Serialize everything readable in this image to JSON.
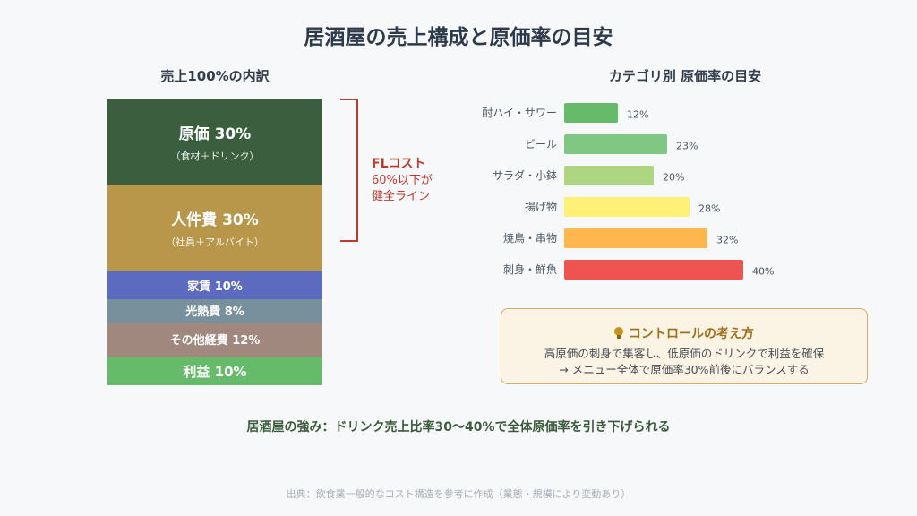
{
  "title": "居酒屋の売上構成と原価率の目安",
  "left_heading": "売上100%の内訳",
  "right_heading": "カテゴリ別 原価率の目安",
  "segments": [
    {
      "label": "原価 30%",
      "sub": "（食材＋ドリンク）",
      "value": 30,
      "color": "#3b5e3f"
    },
    {
      "label": "人件費 30%",
      "sub": "（社員＋アルバイト）",
      "value": 30,
      "color": "#b8974b"
    },
    {
      "label": "家賃 10%",
      "sub": "",
      "value": 10,
      "color": "#5c6bc0"
    },
    {
      "label": "光熱費 8%",
      "sub": "",
      "value": 8,
      "color": "#78909c"
    },
    {
      "label": "その他経費 12%",
      "sub": "",
      "value": 12,
      "color": "#a1887f"
    },
    {
      "label": "利益 10%",
      "sub": "",
      "value": 10,
      "color": "#66bb6a"
    }
  ],
  "fl": {
    "title": "FLコスト",
    "note_line1": "60%以下が",
    "note_line2": "健全ライン",
    "color": "#c0392b"
  },
  "chart_data": {
    "type": "bar",
    "orientation": "horizontal",
    "categories": [
      "酎ハイ・サワー",
      "ビール",
      "サラダ・小鉢",
      "揚げ物",
      "焼鳥・串物",
      "刺身・鮮魚"
    ],
    "values": [
      12,
      23,
      20,
      28,
      32,
      40
    ],
    "value_labels": [
      "12%",
      "23%",
      "20%",
      "28%",
      "32%",
      "40%"
    ],
    "colors": [
      "#66bb6a",
      "#81c784",
      "#aed581",
      "#fff176",
      "#ffb74d",
      "#ef5350"
    ],
    "xlim": [
      0,
      40
    ],
    "grid": false
  },
  "callout": {
    "title": "コントロールの考え方",
    "line1": "高原価の刺身で集客し、低原価のドリンクで利益を確保",
    "line2": "→ メニュー全体で原価率30%前後にバランスする",
    "icon": "lightbulb-icon"
  },
  "strength": "居酒屋の強み：ドリンク売上比率30〜40%で全体原価率を引き下げられる",
  "source": "出典：飲食業一般的なコスト構造を参考に作成（業態・規模により変動あり）"
}
